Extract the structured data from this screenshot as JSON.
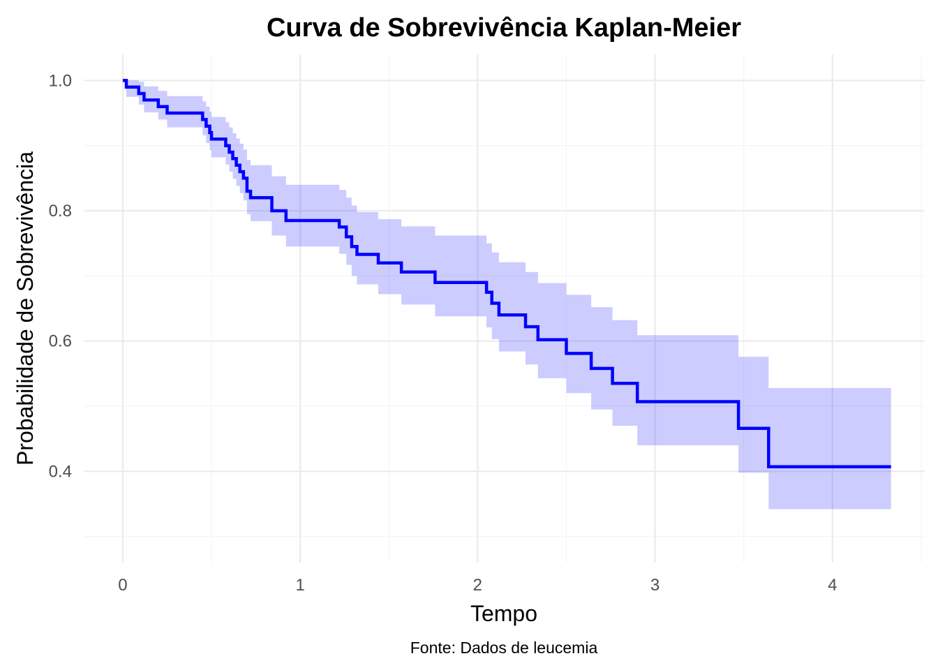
{
  "chart_data": {
    "type": "line",
    "subtype": "kaplan-meier step curve with confidence band",
    "title": "Curva de Sobrevivência Kaplan-Meier",
    "xlabel": "Tempo",
    "ylabel": "Probabilidade de Sobrevivência",
    "caption": "Fonte: Dados de leucemia",
    "xlim": [
      -0.22,
      4.52
    ],
    "ylim": [
      0.26,
      1.04
    ],
    "x_ticks": [
      0,
      1,
      2,
      3,
      4
    ],
    "x_tick_labels": [
      "0",
      "1",
      "2",
      "3",
      "4"
    ],
    "y_ticks": [
      0.4,
      0.6,
      0.8,
      1.0
    ],
    "y_tick_labels": [
      "0.4",
      "0.6",
      "0.8",
      "1.0"
    ],
    "grid": true,
    "legend": "none",
    "colors": {
      "line": "#0000ff",
      "band": "#0000ff",
      "band_opacity": 0.2
    },
    "series": [
      {
        "time": [
          0,
          0.02,
          0.09,
          0.12,
          0.2,
          0.25,
          0.45,
          0.47,
          0.49,
          0.5,
          0.58,
          0.6,
          0.62,
          0.64,
          0.66,
          0.68,
          0.7,
          0.72,
          0.84,
          0.92,
          1.22,
          1.26,
          1.29,
          1.32,
          1.44,
          1.57,
          1.76,
          2.05,
          2.08,
          2.12,
          2.27,
          2.34,
          2.5,
          2.64,
          2.76,
          2.9,
          3.47,
          3.64,
          4.33
        ],
        "surv": [
          1.0,
          0.99,
          0.98,
          0.97,
          0.96,
          0.95,
          0.94,
          0.93,
          0.92,
          0.91,
          0.9,
          0.89,
          0.88,
          0.87,
          0.86,
          0.85,
          0.83,
          0.82,
          0.8,
          0.785,
          0.775,
          0.76,
          0.745,
          0.733,
          0.72,
          0.706,
          0.69,
          0.675,
          0.658,
          0.64,
          0.622,
          0.602,
          0.581,
          0.558,
          0.535,
          0.507,
          0.466,
          0.407,
          0.407
        ],
        "lower": [
          1.0,
          0.975,
          0.963,
          0.951,
          0.94,
          0.928,
          0.916,
          0.904,
          0.893,
          0.882,
          0.871,
          0.86,
          0.849,
          0.838,
          0.827,
          0.816,
          0.795,
          0.784,
          0.762,
          0.745,
          0.734,
          0.717,
          0.7,
          0.687,
          0.672,
          0.656,
          0.638,
          0.621,
          0.603,
          0.584,
          0.564,
          0.543,
          0.52,
          0.495,
          0.47,
          0.44,
          0.398,
          0.342,
          0.342
        ],
        "upper": [
          1.0,
          1.0,
          0.998,
          0.991,
          0.984,
          0.976,
          0.968,
          0.96,
          0.952,
          0.944,
          0.936,
          0.928,
          0.919,
          0.911,
          0.903,
          0.894,
          0.878,
          0.87,
          0.853,
          0.84,
          0.832,
          0.82,
          0.808,
          0.798,
          0.787,
          0.776,
          0.762,
          0.75,
          0.736,
          0.721,
          0.706,
          0.689,
          0.671,
          0.652,
          0.632,
          0.609,
          0.576,
          0.528,
          0.528
        ]
      }
    ]
  }
}
